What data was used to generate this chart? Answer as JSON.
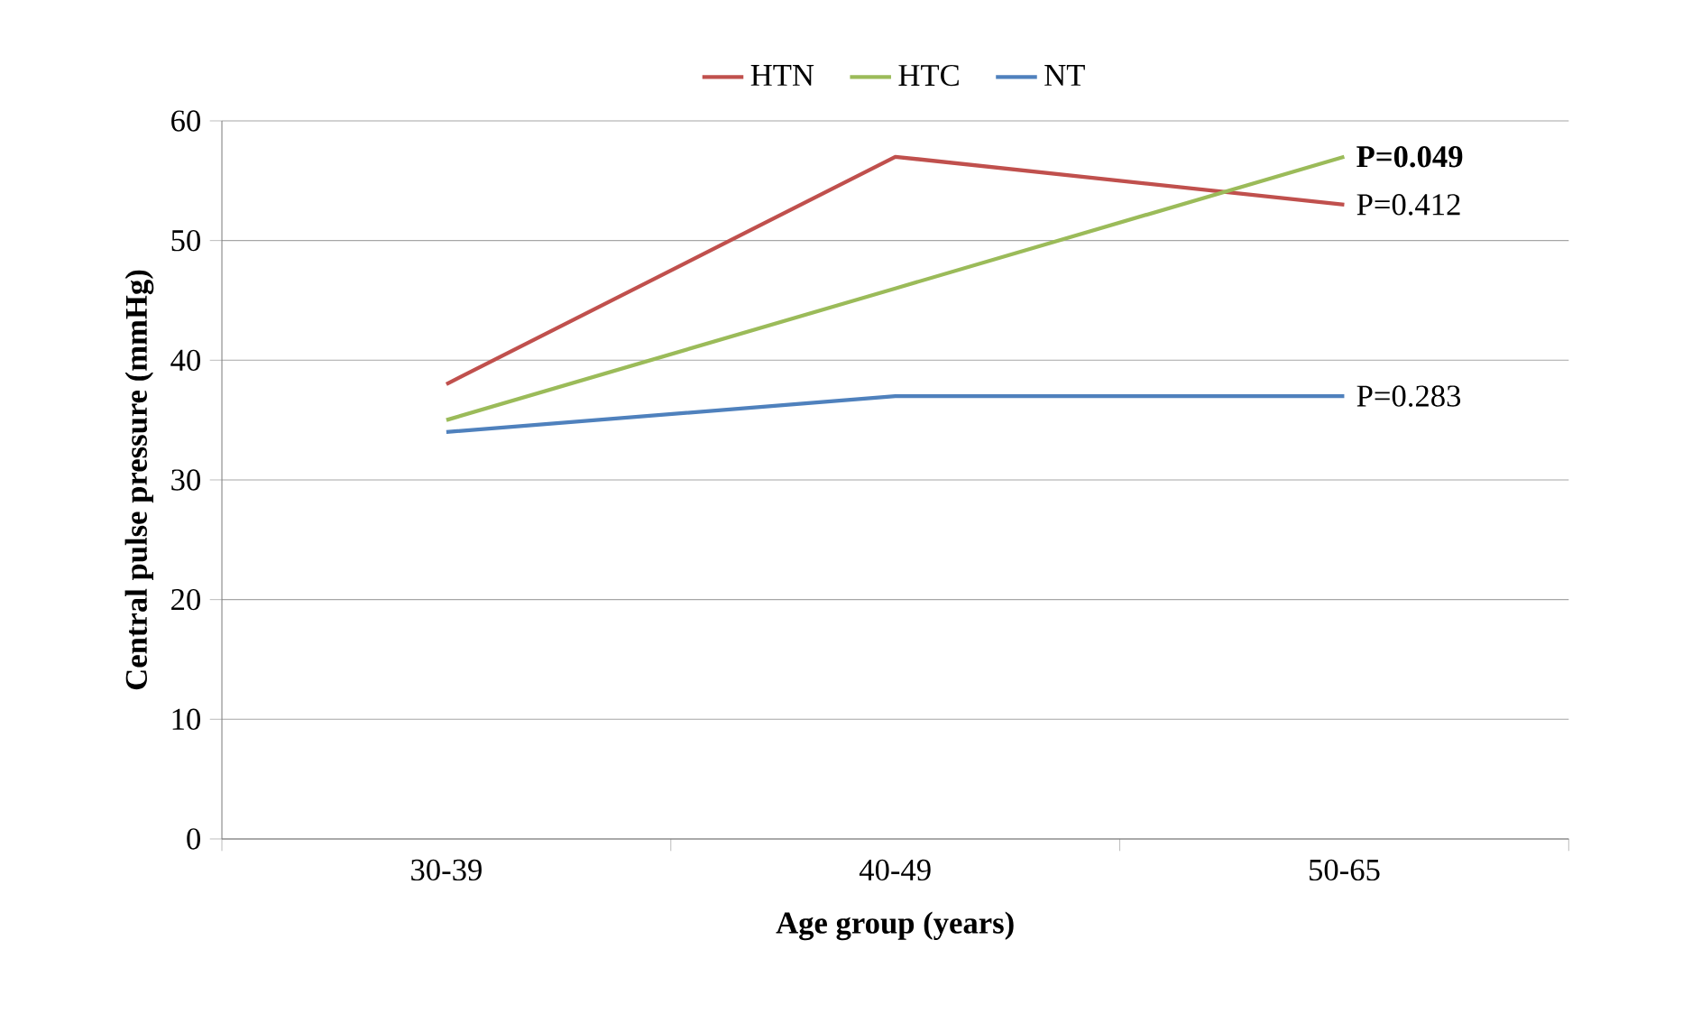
{
  "chart_data": {
    "type": "line",
    "xlabel": "Age group (years)",
    "ylabel": "Central pulse pressure (mmHg)",
    "categories": [
      "30-39",
      "40-49",
      "50-65"
    ],
    "series": [
      {
        "name": "HTN",
        "color": "#c0504d",
        "values": [
          38,
          57,
          53
        ]
      },
      {
        "name": "HTC",
        "color": "#9bbb59",
        "values": [
          35,
          46,
          57
        ]
      },
      {
        "name": "NT",
        "color": "#4f81bd",
        "values": [
          34,
          37,
          37
        ]
      }
    ],
    "ylim": [
      0,
      60
    ],
    "yticks": [
      0,
      10,
      20,
      30,
      40,
      50,
      60
    ],
    "grid": "y",
    "legend": "top",
    "annotations": [
      {
        "text": "**P=0.049**",
        "x": "50-65",
        "y": 57
      },
      {
        "text": "P=0.412",
        "x": "50-65",
        "y": 53
      },
      {
        "text": "P=0.283",
        "x": "50-65",
        "y": 37
      }
    ]
  }
}
